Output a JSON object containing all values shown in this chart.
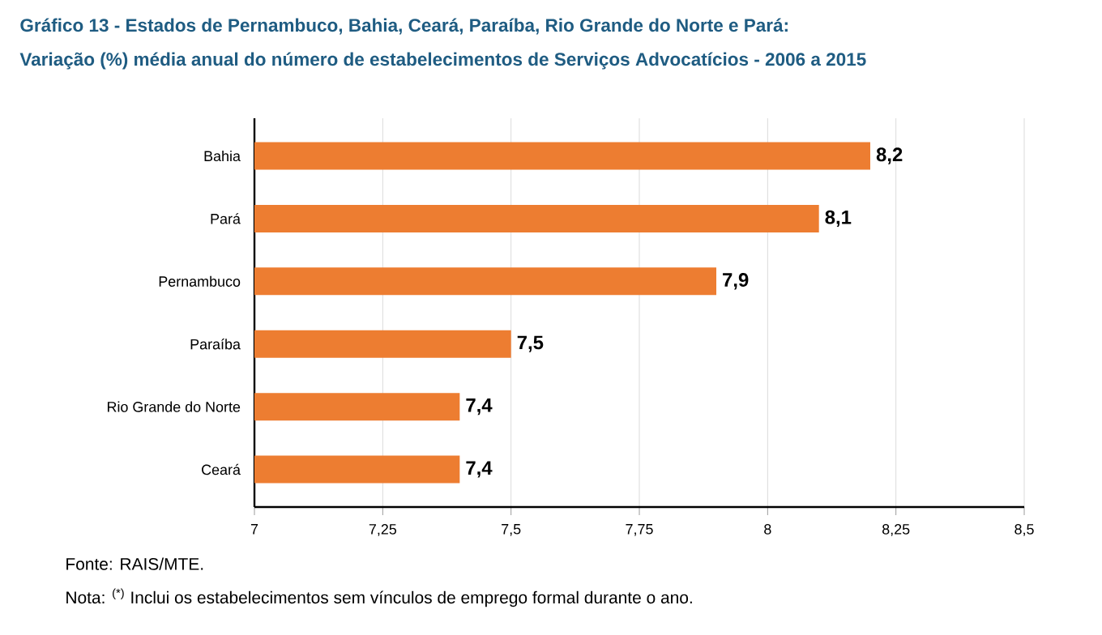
{
  "chart_data": {
    "type": "bar",
    "orientation": "horizontal",
    "title": "Gráfico 13 - Estados de Pernambuco, Bahia, Ceará, Paraíba, Rio Grande do Norte e Pará:",
    "subtitle": "Variação (%) média anual do número de estabelecimentos de Serviços Advocatícios - 2006 a 2015",
    "categories": [
      "Bahia",
      "Pará",
      "Pernambuco",
      "Paraíba",
      "Rio Grande do Norte",
      "Ceará"
    ],
    "values": [
      8.2,
      8.1,
      7.9,
      7.5,
      7.4,
      7.4
    ],
    "value_labels": [
      "8,2",
      "8,1",
      "7,9",
      "7,5",
      "7,4",
      "7,4"
    ],
    "color": "#ed7d31",
    "xlim": [
      7,
      8.5
    ],
    "xticks": [
      7,
      {
        "value": 7.25,
        "label": "7,25"
      },
      {
        "value": 7.5,
        "label": "7,5"
      },
      {
        "value": 7.75,
        "label": "7,75"
      },
      8,
      {
        "value": 8.25,
        "label": "8,25"
      },
      {
        "value": 8.5,
        "label": "8,5"
      }
    ],
    "grid": "x",
    "annotations": [
      "Fonte: RAIS/MTE.",
      "Nota: $^{(*)}$ Inclui os estabelecimentos sem vínculos de emprego formal durante o ano."
    ]
  }
}
